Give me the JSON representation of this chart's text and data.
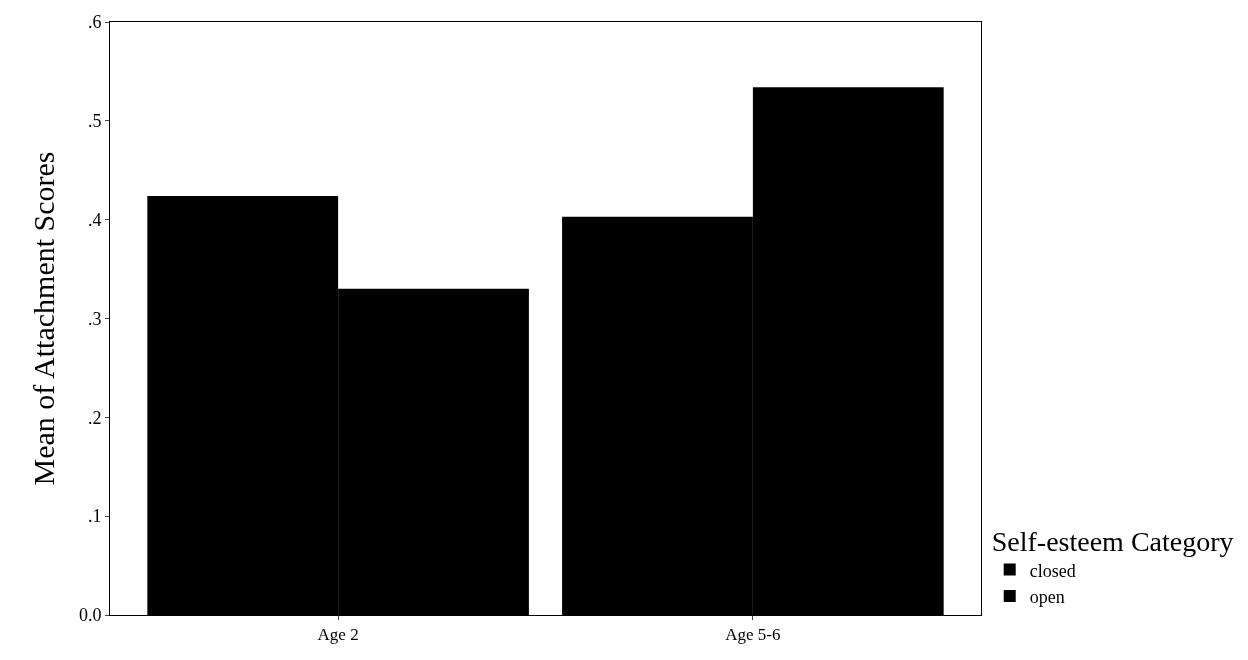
{
  "chart_data": {
    "type": "bar",
    "ylabel": "Mean of Attachment Scores",
    "legend_title": "Self-esteem Category",
    "categories": [
      "Age 2",
      "Age 5-6"
    ],
    "series": [
      {
        "name": "closed",
        "color": "#000000",
        "values": [
          0.424,
          0.403
        ]
      },
      {
        "name": "open",
        "color": "#000000",
        "values": [
          0.33,
          0.534
        ]
      }
    ],
    "ylim": [
      0,
      0.6
    ],
    "yticks": [
      {
        "value": 0,
        "label": "0.0"
      },
      {
        "value": 0.1,
        "label": ".1"
      },
      {
        "value": 0.2,
        "label": ".2"
      },
      {
        "value": 0.3,
        "label": ".3"
      },
      {
        "value": 0.4,
        "label": ".4"
      },
      {
        "value": 0.5,
        "label": ".5"
      },
      {
        "value": 0.6,
        "label": ".6"
      }
    ],
    "legend": "bottom right"
  }
}
